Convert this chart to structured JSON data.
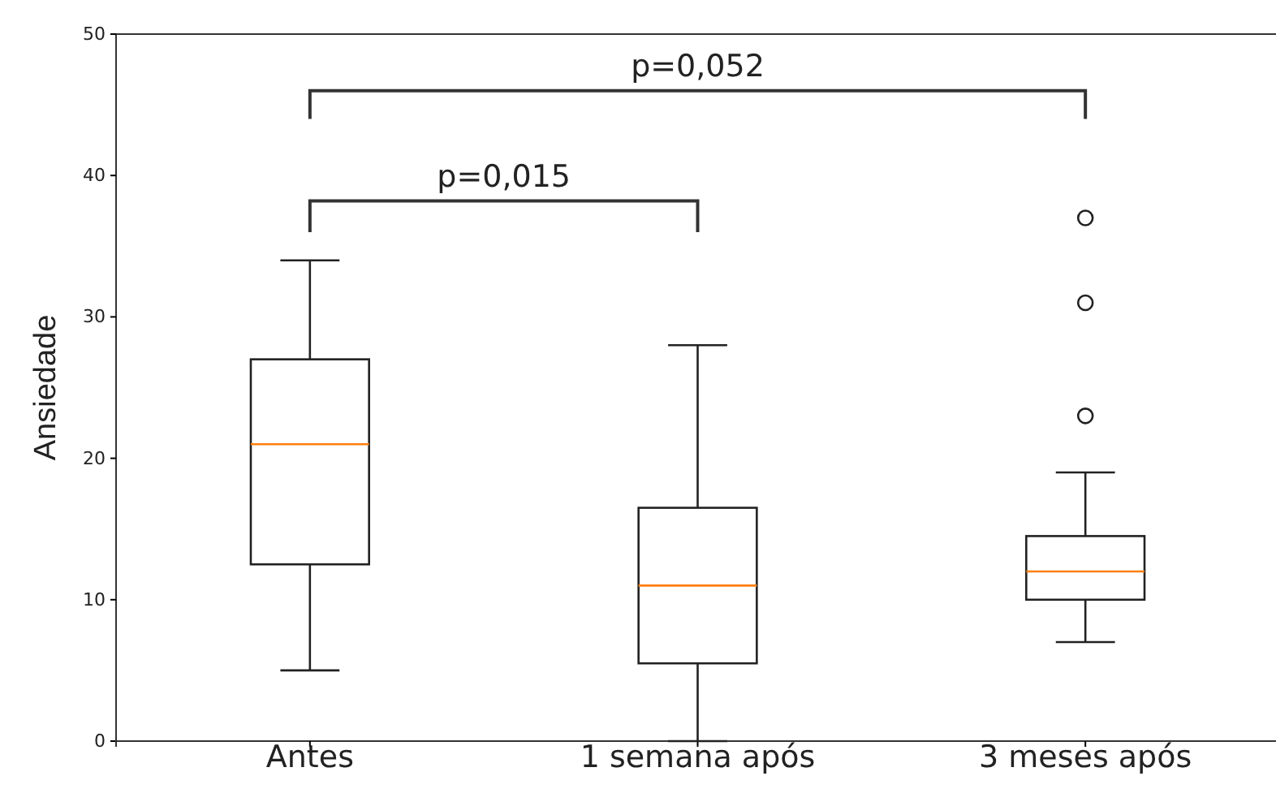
{
  "chart_data": {
    "type": "box",
    "ylabel": "Ansiedade",
    "categories": [
      "Antes",
      "1 semana após",
      "3 meses após"
    ],
    "boxes": [
      {
        "low": 5,
        "q1": 12.5,
        "median": 21,
        "q3": 27,
        "high": 34
      },
      {
        "low": 0,
        "q1": 5.5,
        "median": 11,
        "q3": 16.5,
        "high": 28
      },
      {
        "low": 7,
        "q1": 10,
        "median": 12,
        "q3": 14.5,
        "high": 19,
        "outliers": [
          23,
          31,
          37
        ]
      }
    ],
    "ylim": [
      0,
      50
    ],
    "yticks": [
      0,
      10,
      20,
      30,
      40,
      50
    ],
    "grid": false,
    "annotations": [
      "p=0,015",
      "p=0,052"
    ]
  }
}
